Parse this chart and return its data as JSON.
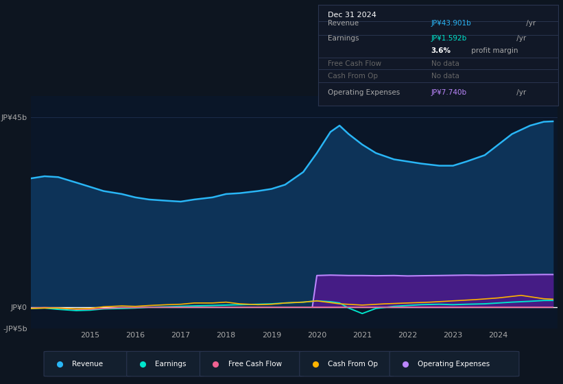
{
  "bg_color": "#0d1520",
  "plot_bg_color": "#0a1628",
  "ylim": [
    -5,
    50
  ],
  "yticks": [
    -5,
    0,
    45
  ],
  "ytick_labels": [
    "-JP¥5b",
    "JP¥0",
    "JP¥45b"
  ],
  "xlim_start": 2013.7,
  "xlim_end": 2025.3,
  "xticks": [
    2015,
    2016,
    2017,
    2018,
    2019,
    2020,
    2021,
    2022,
    2023,
    2024
  ],
  "grid_color": "#1e3050",
  "axis_label_color": "#aaaaaa",
  "revenue_color": "#29b6f6",
  "revenue_fill": "#0d3358",
  "earnings_color": "#00e5cc",
  "fcf_color": "#f06292",
  "cashfromop_color": "#ffb300",
  "opex_color": "#bb86fc",
  "opex_fill": "#4a1a8a",
  "revenue_data_x": [
    2013.7,
    2014.0,
    2014.3,
    2014.7,
    2015.0,
    2015.3,
    2015.7,
    2016.0,
    2016.3,
    2016.7,
    2017.0,
    2017.3,
    2017.7,
    2018.0,
    2018.3,
    2018.7,
    2019.0,
    2019.3,
    2019.7,
    2020.0,
    2020.3,
    2020.5,
    2020.7,
    2021.0,
    2021.3,
    2021.7,
    2022.0,
    2022.3,
    2022.7,
    2023.0,
    2023.3,
    2023.7,
    2024.0,
    2024.3,
    2024.7,
    2025.0,
    2025.2
  ],
  "revenue_data_y": [
    30.5,
    31.0,
    30.8,
    29.5,
    28.5,
    27.5,
    26.8,
    26.0,
    25.5,
    25.2,
    25.0,
    25.5,
    26.0,
    26.8,
    27.0,
    27.5,
    28.0,
    29.0,
    32.0,
    36.5,
    41.5,
    43.0,
    41.0,
    38.5,
    36.5,
    35.0,
    34.5,
    34.0,
    33.5,
    33.5,
    34.5,
    36.0,
    38.5,
    41.0,
    43.0,
    43.9,
    44.0
  ],
  "earnings_data_x": [
    2013.7,
    2014.0,
    2014.3,
    2014.7,
    2015.0,
    2015.3,
    2015.7,
    2016.0,
    2016.3,
    2016.7,
    2017.0,
    2017.3,
    2017.7,
    2018.0,
    2018.3,
    2018.7,
    2019.0,
    2019.3,
    2019.7,
    2020.0,
    2020.3,
    2020.5,
    2020.7,
    2021.0,
    2021.3,
    2021.7,
    2022.0,
    2022.3,
    2022.7,
    2023.0,
    2023.3,
    2023.7,
    2024.0,
    2024.3,
    2024.7,
    2025.0,
    2025.2
  ],
  "earnings_data_y": [
    -0.3,
    -0.2,
    -0.5,
    -0.8,
    -0.7,
    -0.4,
    -0.3,
    -0.2,
    0.0,
    0.1,
    0.2,
    0.3,
    0.4,
    0.5,
    0.6,
    0.7,
    0.8,
    1.0,
    1.2,
    1.5,
    1.3,
    1.0,
    -0.2,
    -1.5,
    -0.3,
    0.2,
    0.4,
    0.6,
    0.7,
    0.6,
    0.7,
    0.8,
    1.0,
    1.2,
    1.4,
    1.592,
    1.6
  ],
  "fcf_data_x": [
    2013.7,
    2014.0,
    2014.3,
    2014.7,
    2015.0,
    2015.3,
    2015.7,
    2016.0,
    2016.3,
    2016.7,
    2017.0,
    2017.3,
    2017.7,
    2018.0,
    2018.3,
    2018.7,
    2019.0,
    2019.3,
    2019.7,
    2020.0,
    2020.5,
    2021.0,
    2021.5,
    2022.0,
    2022.5,
    2023.0,
    2023.5,
    2024.0,
    2024.5,
    2025.0,
    2025.2
  ],
  "fcf_data_y": [
    -0.2,
    -0.1,
    -0.2,
    -0.5,
    -0.5,
    -0.3,
    -0.1,
    -0.1,
    0.0,
    0.0,
    0.0,
    0.0,
    0.0,
    0.0,
    0.0,
    0.0,
    0.0,
    0.0,
    0.0,
    0.0,
    0.0,
    0.0,
    0.0,
    0.0,
    0.0,
    0.0,
    0.0,
    0.0,
    0.0,
    0.0,
    0.0
  ],
  "cashfromop_data_x": [
    2013.7,
    2014.0,
    2014.3,
    2014.7,
    2015.0,
    2015.3,
    2015.7,
    2016.0,
    2016.3,
    2016.7,
    2017.0,
    2017.3,
    2017.7,
    2018.0,
    2018.3,
    2018.7,
    2019.0,
    2019.3,
    2019.7,
    2020.0,
    2020.5,
    2021.0,
    2021.5,
    2022.0,
    2022.5,
    2023.0,
    2023.5,
    2024.0,
    2024.5,
    2025.0,
    2025.2
  ],
  "cashfromop_data_y": [
    -0.3,
    -0.2,
    -0.2,
    -0.4,
    -0.3,
    0.1,
    0.3,
    0.2,
    0.4,
    0.6,
    0.7,
    1.0,
    1.0,
    1.2,
    0.8,
    0.6,
    0.7,
    1.0,
    1.2,
    1.5,
    0.8,
    0.5,
    0.8,
    1.0,
    1.2,
    1.5,
    1.8,
    2.2,
    2.8,
    2.0,
    1.9
  ],
  "opex_data_x": [
    2019.9,
    2020.0,
    2020.3,
    2020.5,
    2020.7,
    2021.0,
    2021.3,
    2021.7,
    2022.0,
    2022.3,
    2022.7,
    2023.0,
    2023.3,
    2023.7,
    2024.0,
    2024.3,
    2024.7,
    2025.0,
    2025.2
  ],
  "opex_data_y": [
    0.0,
    7.5,
    7.6,
    7.55,
    7.5,
    7.5,
    7.45,
    7.5,
    7.4,
    7.45,
    7.5,
    7.55,
    7.6,
    7.55,
    7.6,
    7.65,
    7.7,
    7.74,
    7.74
  ],
  "info_box_title": "Dec 31 2024",
  "info_rows": [
    {
      "label": "Revenue",
      "value": "JP¥43.901b",
      "suffix": " /yr",
      "vcolor": "#29b6f6",
      "lcolor": "#aaaaaa"
    },
    {
      "label": "Earnings",
      "value": "JP¥1.592b",
      "suffix": " /yr",
      "vcolor": "#00e5cc",
      "lcolor": "#aaaaaa"
    },
    {
      "label": "",
      "value": "3.6%",
      "suffix": " profit margin",
      "vcolor": "#ffffff",
      "lcolor": "#aaaaaa",
      "bold_val": true
    },
    {
      "label": "Free Cash Flow",
      "value": "No data",
      "suffix": "",
      "vcolor": "#666666",
      "lcolor": "#666666"
    },
    {
      "label": "Cash From Op",
      "value": "No data",
      "suffix": "",
      "vcolor": "#666666",
      "lcolor": "#666666"
    },
    {
      "label": "Operating Expenses",
      "value": "JP¥7.740b",
      "suffix": " /yr",
      "vcolor": "#bb86fc",
      "lcolor": "#aaaaaa"
    }
  ],
  "legend_items": [
    {
      "label": "Revenue",
      "color": "#29b6f6"
    },
    {
      "label": "Earnings",
      "color": "#00e5cc"
    },
    {
      "label": "Free Cash Flow",
      "color": "#f06292"
    },
    {
      "label": "Cash From Op",
      "color": "#ffb300"
    },
    {
      "label": "Operating Expenses",
      "color": "#bb86fc"
    }
  ]
}
